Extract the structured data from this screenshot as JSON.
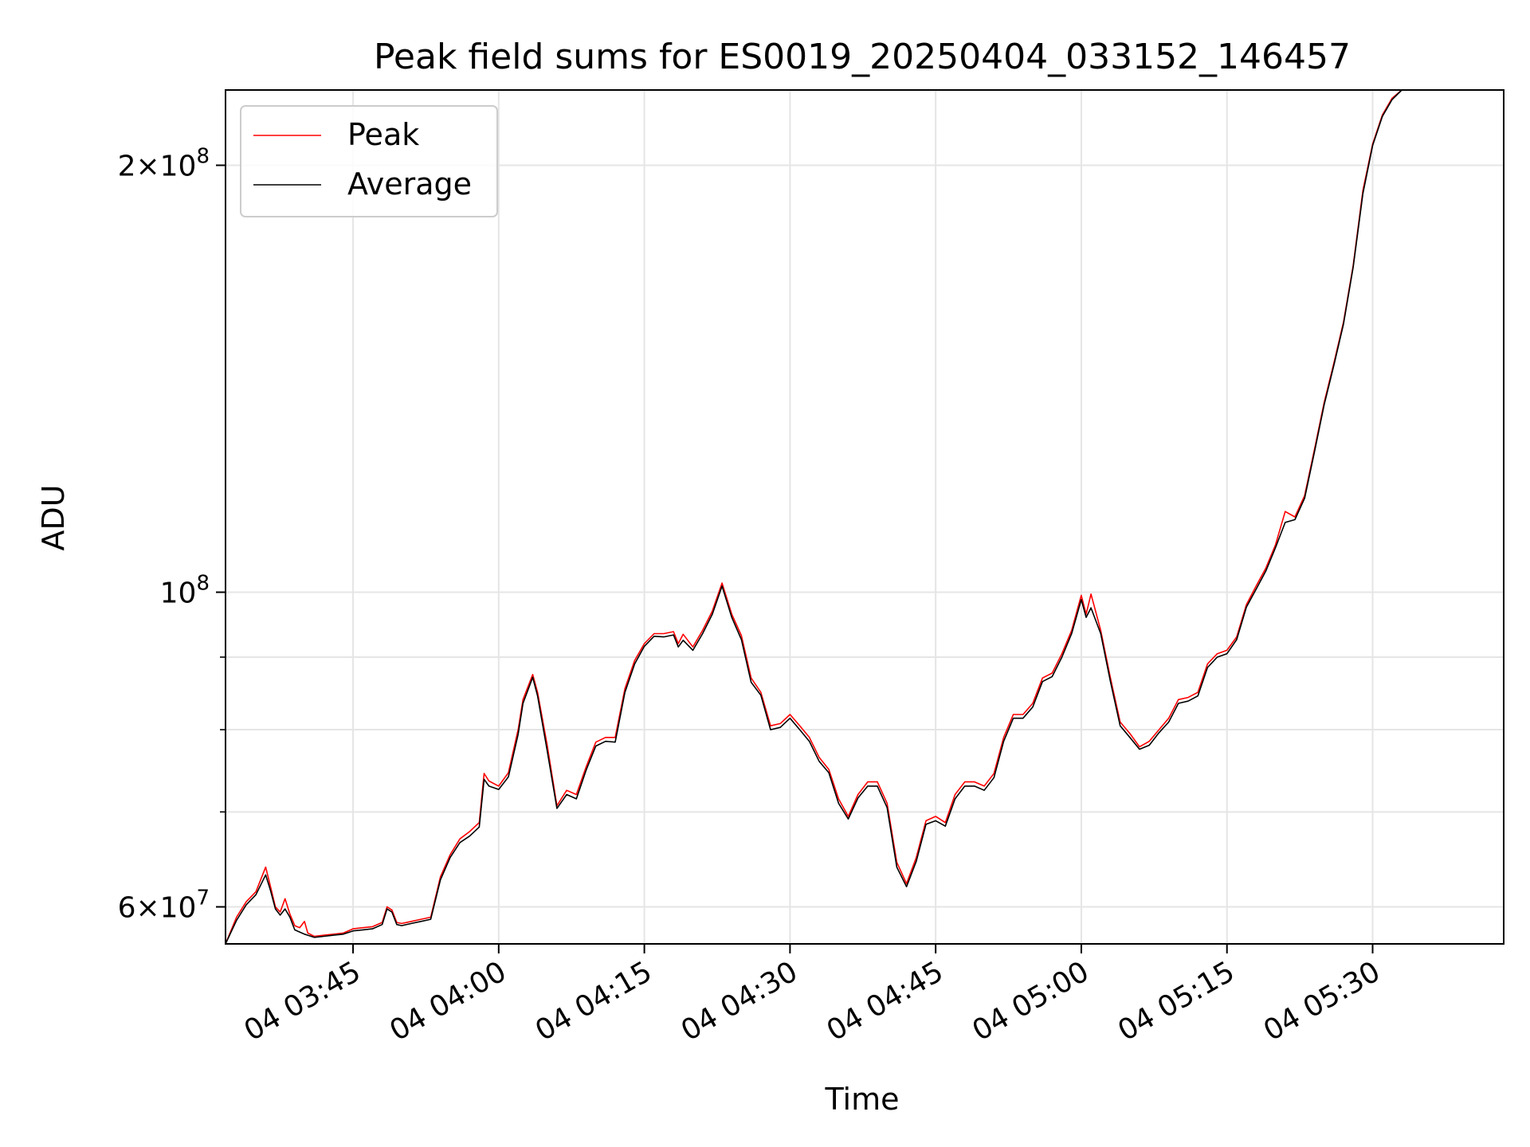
{
  "colors": {
    "peak": "#ff0000",
    "average": "#000000",
    "grid": "#e5e5e5",
    "axes": "#000000",
    "background": "#ffffff"
  },
  "chart_data": {
    "type": "line",
    "title": "Peak field sums for ES0019_20250404_033152_146457",
    "xlabel": "Time",
    "ylabel": "ADU",
    "yscale": "log",
    "grid": true,
    "legend_position": "top-left",
    "xlim": [
      "03:31:52",
      "05:43:30"
    ],
    "ylim": [
      56500000,
      226000000
    ],
    "xticks": [
      {
        "time": "03:45",
        "label": "04 03:45"
      },
      {
        "time": "04:00",
        "label": "04 04:00"
      },
      {
        "time": "04:15",
        "label": "04 04:15"
      },
      {
        "time": "04:30",
        "label": "04 04:30"
      },
      {
        "time": "04:45",
        "label": "04 04:45"
      },
      {
        "time": "05:00",
        "label": "04 05:00"
      },
      {
        "time": "05:15",
        "label": "04 05:15"
      },
      {
        "time": "05:30",
        "label": "04 05:30"
      }
    ],
    "yticks": [
      {
        "value": 60000000,
        "mantissa": "6",
        "base": "10",
        "exp": "7"
      },
      {
        "value": 100000000,
        "mantissa": "",
        "base": "10",
        "exp": "8"
      },
      {
        "value": 200000000,
        "mantissa": "2",
        "base": "10",
        "exp": "8"
      }
    ],
    "yticks_minor": [
      70000000,
      80000000,
      90000000
    ],
    "series": [
      {
        "name": "Peak",
        "points": [
          [
            "03:31:52",
            56.5
          ],
          [
            "03:33:00",
            59.0
          ],
          [
            "03:34:00",
            60.5
          ],
          [
            "03:35:00",
            61.5
          ],
          [
            "03:36:00",
            64.0
          ],
          [
            "03:36:30",
            62.0
          ],
          [
            "03:37:00",
            60.0
          ],
          [
            "03:37:30",
            59.5
          ],
          [
            "03:38:00",
            60.8
          ],
          [
            "03:38:30",
            59.3
          ],
          [
            "03:39:00",
            58.2
          ],
          [
            "03:39:30",
            58.0
          ],
          [
            "03:40:00",
            58.6
          ],
          [
            "03:40:20",
            57.5
          ],
          [
            "03:41:00",
            57.2
          ],
          [
            "03:42:00",
            57.3
          ],
          [
            "03:43:00",
            57.4
          ],
          [
            "03:44:00",
            57.5
          ],
          [
            "03:45:00",
            57.9
          ],
          [
            "03:46:00",
            58.0
          ],
          [
            "03:47:00",
            58.1
          ],
          [
            "03:48:00",
            58.5
          ],
          [
            "03:48:30",
            60.0
          ],
          [
            "03:49:00",
            59.7
          ],
          [
            "03:49:30",
            58.5
          ],
          [
            "03:50:00",
            58.4
          ],
          [
            "03:51:00",
            58.6
          ],
          [
            "03:52:00",
            58.8
          ],
          [
            "03:53:00",
            59.0
          ],
          [
            "03:54:00",
            63.0
          ],
          [
            "03:55:00",
            65.3
          ],
          [
            "03:56:00",
            67.0
          ],
          [
            "03:57:00",
            67.8
          ],
          [
            "03:58:00",
            68.8
          ],
          [
            "03:58:30",
            74.5
          ],
          [
            "03:59:00",
            73.6
          ],
          [
            "04:00:00",
            73.0
          ],
          [
            "04:01:00",
            74.6
          ],
          [
            "04:02:00",
            80.0
          ],
          [
            "04:02:30",
            84.0
          ],
          [
            "04:03:30",
            87.5
          ],
          [
            "04:04:00",
            85.0
          ],
          [
            "04:05:00",
            78.0
          ],
          [
            "04:06:00",
            70.7
          ],
          [
            "04:07:00",
            72.5
          ],
          [
            "04:08:00",
            72.0
          ],
          [
            "04:09:00",
            75.3
          ],
          [
            "04:10:00",
            78.4
          ],
          [
            "04:11:00",
            79.0
          ],
          [
            "04:12:00",
            79.0
          ],
          [
            "04:13:00",
            85.5
          ],
          [
            "04:14:00",
            89.5
          ],
          [
            "04:15:00",
            92.0
          ],
          [
            "04:16:00",
            93.5
          ],
          [
            "04:17:00",
            93.5
          ],
          [
            "04:18:00",
            93.8
          ],
          [
            "04:18:30",
            92.0
          ],
          [
            "04:19:00",
            93.4
          ],
          [
            "04:20:00",
            91.5
          ],
          [
            "04:21:00",
            94.0
          ],
          [
            "04:22:00",
            97.0
          ],
          [
            "04:23:00",
            101.5
          ],
          [
            "04:24:00",
            96.5
          ],
          [
            "04:25:00",
            93.2
          ],
          [
            "04:26:00",
            87.0
          ],
          [
            "04:27:00",
            85.0
          ],
          [
            "04:28:00",
            80.5
          ],
          [
            "04:29:00",
            80.8
          ],
          [
            "04:30:00",
            82.0
          ],
          [
            "04:31:00",
            80.5
          ],
          [
            "04:32:00",
            79.0
          ],
          [
            "04:33:00",
            76.5
          ],
          [
            "04:34:00",
            75.0
          ],
          [
            "04:35:00",
            71.5
          ],
          [
            "04:36:00",
            69.5
          ],
          [
            "04:37:00",
            72.0
          ],
          [
            "04:38:00",
            73.5
          ],
          [
            "04:39:00",
            73.5
          ],
          [
            "04:40:00",
            71.0
          ],
          [
            "04:41:00",
            64.5
          ],
          [
            "04:42:00",
            62.3
          ],
          [
            "04:43:00",
            65.0
          ],
          [
            "04:44:00",
            69.0
          ],
          [
            "04:45:00",
            69.5
          ],
          [
            "04:46:00",
            68.8
          ],
          [
            "04:47:00",
            72.0
          ],
          [
            "04:48:00",
            73.5
          ],
          [
            "04:49:00",
            73.5
          ],
          [
            "04:50:00",
            73.0
          ],
          [
            "04:51:00",
            74.5
          ],
          [
            "04:52:00",
            79.0
          ],
          [
            "04:53:00",
            82.0
          ],
          [
            "04:54:00",
            82.0
          ],
          [
            "04:55:00",
            83.5
          ],
          [
            "04:56:00",
            87.0
          ],
          [
            "04:57:00",
            87.7
          ],
          [
            "04:58:00",
            90.5
          ],
          [
            "04:59:00",
            94.0
          ],
          [
            "05:00:00",
            99.5
          ],
          [
            "05:00:30",
            96.5
          ],
          [
            "05:01:00",
            99.7
          ],
          [
            "05:02:00",
            94.0
          ],
          [
            "05:03:00",
            87.0
          ],
          [
            "05:04:00",
            81.0
          ],
          [
            "05:05:00",
            79.5
          ],
          [
            "05:06:00",
            77.8
          ],
          [
            "05:07:00",
            78.5
          ],
          [
            "05:08:00",
            80.0
          ],
          [
            "05:09:00",
            81.5
          ],
          [
            "05:10:00",
            84.0
          ],
          [
            "05:11:00",
            84.3
          ],
          [
            "05:12:00",
            85.0
          ],
          [
            "05:13:00",
            89.0
          ],
          [
            "05:14:00",
            90.5
          ],
          [
            "05:15:00",
            91.0
          ],
          [
            "05:16:00",
            93.0
          ],
          [
            "05:17:00",
            98.0
          ],
          [
            "05:18:00",
            101.0
          ],
          [
            "05:19:00",
            104.0
          ],
          [
            "05:20:00",
            108.0
          ],
          [
            "05:21:00",
            114.0
          ],
          [
            "05:22:00",
            113.0
          ],
          [
            "05:23:00",
            117.0
          ],
          [
            "05:24:00",
            126.0
          ],
          [
            "05:25:00",
            136.0
          ],
          [
            "05:26:00",
            145.0
          ],
          [
            "05:27:00",
            155.0
          ],
          [
            "05:28:00",
            170.0
          ],
          [
            "05:29:00",
            192.0
          ],
          [
            "05:30:00",
            207.0
          ],
          [
            "05:31:00",
            217.0
          ],
          [
            "05:32:00",
            223.0
          ],
          [
            "05:33:00",
            226.0
          ]
        ]
      },
      {
        "name": "Average",
        "points": [
          [
            "03:31:52",
            56.5
          ],
          [
            "03:33:00",
            58.7
          ],
          [
            "03:34:00",
            60.2
          ],
          [
            "03:35:00",
            61.2
          ],
          [
            "03:36:00",
            63.2
          ],
          [
            "03:36:30",
            61.6
          ],
          [
            "03:37:00",
            59.8
          ],
          [
            "03:37:30",
            59.2
          ],
          [
            "03:38:00",
            59.8
          ],
          [
            "03:38:30",
            59.0
          ],
          [
            "03:39:00",
            57.8
          ],
          [
            "03:39:30",
            57.6
          ],
          [
            "03:40:00",
            57.4
          ],
          [
            "03:40:20",
            57.3
          ],
          [
            "03:41:00",
            57.1
          ],
          [
            "03:42:00",
            57.2
          ],
          [
            "03:43:00",
            57.3
          ],
          [
            "03:44:00",
            57.4
          ],
          [
            "03:45:00",
            57.7
          ],
          [
            "03:46:00",
            57.8
          ],
          [
            "03:47:00",
            57.9
          ],
          [
            "03:48:00",
            58.3
          ],
          [
            "03:48:30",
            59.8
          ],
          [
            "03:49:00",
            59.5
          ],
          [
            "03:49:30",
            58.3
          ],
          [
            "03:50:00",
            58.2
          ],
          [
            "03:51:00",
            58.4
          ],
          [
            "03:52:00",
            58.6
          ],
          [
            "03:53:00",
            58.8
          ],
          [
            "03:54:00",
            62.7
          ],
          [
            "03:55:00",
            65.0
          ],
          [
            "03:56:00",
            66.6
          ],
          [
            "03:57:00",
            67.3
          ],
          [
            "03:58:00",
            68.3
          ],
          [
            "03:58:30",
            73.8
          ],
          [
            "03:59:00",
            73.0
          ],
          [
            "04:00:00",
            72.6
          ],
          [
            "04:01:00",
            74.1
          ],
          [
            "04:02:00",
            79.4
          ],
          [
            "04:02:30",
            83.5
          ],
          [
            "04:03:30",
            87.1
          ],
          [
            "04:04:00",
            84.5
          ],
          [
            "04:05:00",
            77.3
          ],
          [
            "04:06:00",
            70.4
          ],
          [
            "04:07:00",
            72.0
          ],
          [
            "04:08:00",
            71.5
          ],
          [
            "04:09:00",
            74.9
          ],
          [
            "04:10:00",
            77.9
          ],
          [
            "04:11:00",
            78.5
          ],
          [
            "04:12:00",
            78.4
          ],
          [
            "04:13:00",
            85.0
          ],
          [
            "04:14:00",
            89.0
          ],
          [
            "04:15:00",
            91.6
          ],
          [
            "04:16:00",
            93.1
          ],
          [
            "04:17:00",
            93.0
          ],
          [
            "04:18:00",
            93.3
          ],
          [
            "04:18:30",
            91.5
          ],
          [
            "04:19:00",
            92.5
          ],
          [
            "04:20:00",
            91.0
          ],
          [
            "04:21:00",
            93.5
          ],
          [
            "04:22:00",
            96.5
          ],
          [
            "04:23:00",
            101.0
          ],
          [
            "04:24:00",
            96.0
          ],
          [
            "04:25:00",
            92.6
          ],
          [
            "04:26:00",
            86.4
          ],
          [
            "04:27:00",
            84.6
          ],
          [
            "04:28:00",
            80.0
          ],
          [
            "04:29:00",
            80.3
          ],
          [
            "04:30:00",
            81.5
          ],
          [
            "04:31:00",
            80.0
          ],
          [
            "04:32:00",
            78.5
          ],
          [
            "04:33:00",
            76.0
          ],
          [
            "04:34:00",
            74.6
          ],
          [
            "04:35:00",
            71.0
          ],
          [
            "04:36:00",
            69.2
          ],
          [
            "04:37:00",
            71.6
          ],
          [
            "04:38:00",
            73.0
          ],
          [
            "04:39:00",
            73.0
          ],
          [
            "04:40:00",
            70.5
          ],
          [
            "04:41:00",
            64.0
          ],
          [
            "04:42:00",
            62.0
          ],
          [
            "04:43:00",
            64.6
          ],
          [
            "04:44:00",
            68.6
          ],
          [
            "04:45:00",
            69.0
          ],
          [
            "04:46:00",
            68.4
          ],
          [
            "04:47:00",
            71.5
          ],
          [
            "04:48:00",
            73.0
          ],
          [
            "04:49:00",
            73.0
          ],
          [
            "04:50:00",
            72.5
          ],
          [
            "04:51:00",
            74.0
          ],
          [
            "04:52:00",
            78.5
          ],
          [
            "04:53:00",
            81.5
          ],
          [
            "04:54:00",
            81.5
          ],
          [
            "04:55:00",
            83.0
          ],
          [
            "04:56:00",
            86.5
          ],
          [
            "04:57:00",
            87.2
          ],
          [
            "04:58:00",
            90.0
          ],
          [
            "04:59:00",
            93.5
          ],
          [
            "05:00:00",
            98.8
          ],
          [
            "05:00:30",
            96.0
          ],
          [
            "05:01:00",
            97.5
          ],
          [
            "05:02:00",
            93.5
          ],
          [
            "05:03:00",
            86.5
          ],
          [
            "05:04:00",
            80.5
          ],
          [
            "05:05:00",
            79.0
          ],
          [
            "05:06:00",
            77.5
          ],
          [
            "05:07:00",
            78.0
          ],
          [
            "05:08:00",
            79.6
          ],
          [
            "05:09:00",
            81.0
          ],
          [
            "05:10:00",
            83.5
          ],
          [
            "05:11:00",
            83.8
          ],
          [
            "05:12:00",
            84.5
          ],
          [
            "05:13:00",
            88.5
          ],
          [
            "05:14:00",
            90.0
          ],
          [
            "05:15:00",
            90.5
          ],
          [
            "05:16:00",
            92.6
          ],
          [
            "05:17:00",
            97.6
          ],
          [
            "05:18:00",
            100.5
          ],
          [
            "05:19:00",
            103.5
          ],
          [
            "05:20:00",
            107.5
          ],
          [
            "05:21:00",
            112.0
          ],
          [
            "05:22:00",
            112.5
          ],
          [
            "05:23:00",
            116.5
          ],
          [
            "05:24:00",
            125.5
          ],
          [
            "05:25:00",
            135.5
          ],
          [
            "05:26:00",
            144.5
          ],
          [
            "05:27:00",
            154.5
          ],
          [
            "05:28:00",
            169.5
          ],
          [
            "05:29:00",
            191.0
          ],
          [
            "05:30:00",
            206.5
          ],
          [
            "05:31:00",
            216.5
          ],
          [
            "05:32:00",
            222.5
          ],
          [
            "05:33:00",
            226.0
          ]
        ]
      }
    ],
    "y_unit_multiplier": 1000000
  }
}
